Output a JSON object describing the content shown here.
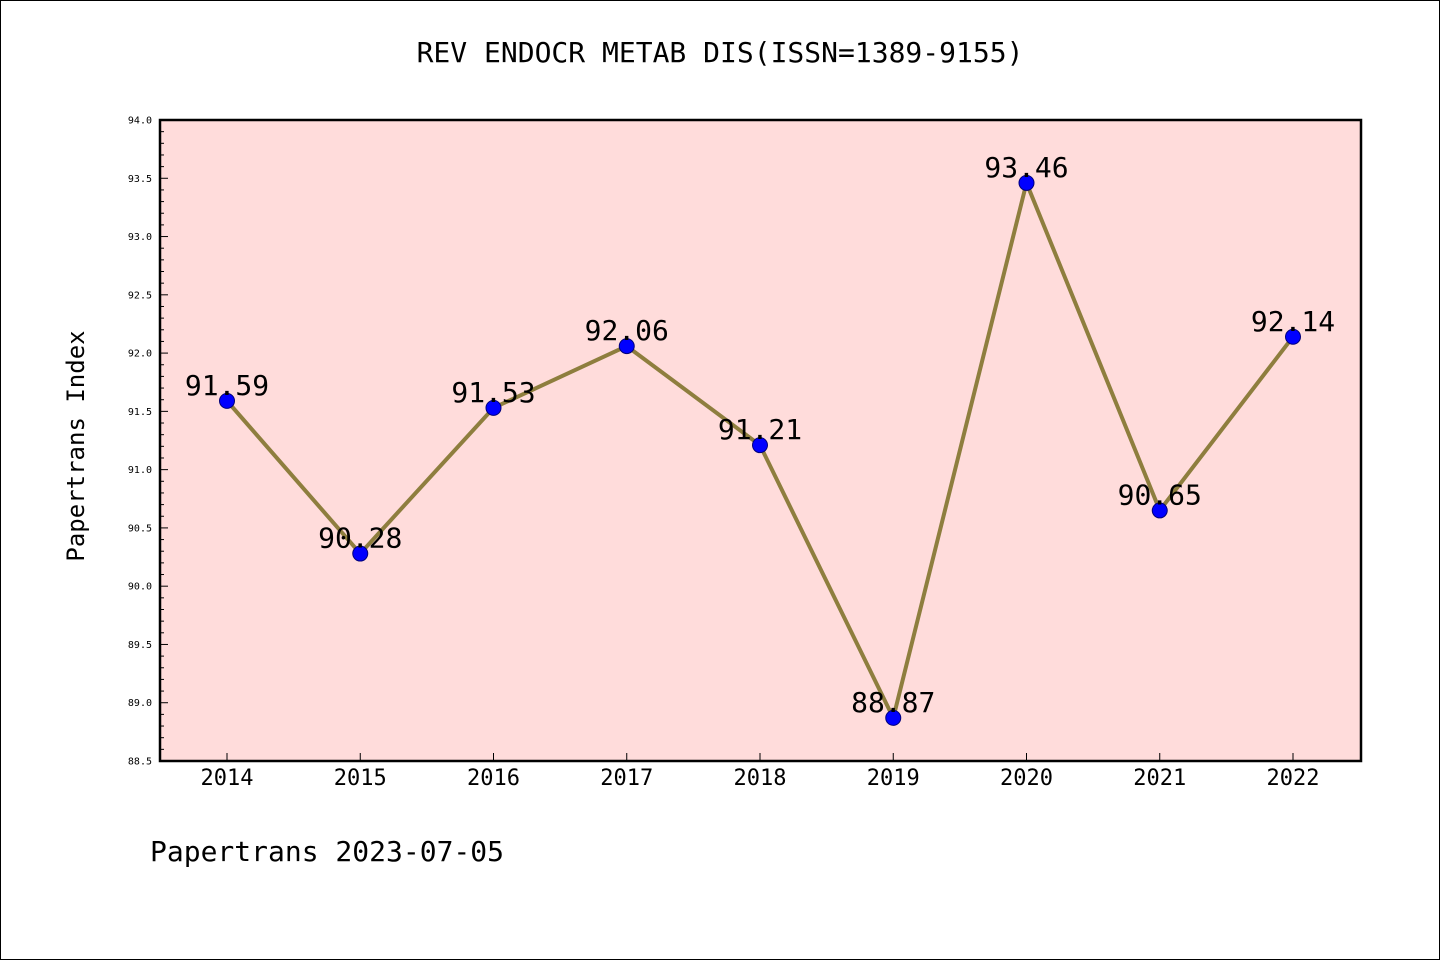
{
  "chart_data": {
    "type": "line",
    "title": "REV ENDOCR METAB DIS(ISSN=1389-9155)",
    "xlabel": "",
    "ylabel": "Papertrans Index",
    "categories": [
      "2014",
      "2015",
      "2016",
      "2017",
      "2018",
      "2019",
      "2020",
      "2021",
      "2022"
    ],
    "values": [
      91.59,
      90.28,
      91.53,
      92.06,
      91.21,
      88.87,
      93.46,
      90.65,
      92.14
    ],
    "value_labels": [
      "91.59",
      "90.28",
      "91.53",
      "92.06",
      "91.21",
      "88.87",
      "93.46",
      "90.65",
      "92.14"
    ],
    "ylim": [
      88.5,
      94.0
    ],
    "yticks": [
      "88.5",
      "89.0",
      "89.5",
      "90.0",
      "90.5",
      "91.0",
      "91.5",
      "92.0",
      "92.5",
      "93.0",
      "93.5",
      "94.0"
    ],
    "grid": false,
    "colors": {
      "plot_background": "#ffdcdb",
      "line": "#8e7e3e",
      "marker": "#0000ff",
      "marker_edge": "#00007a"
    }
  },
  "footer": "Papertrans 2023-07-05"
}
